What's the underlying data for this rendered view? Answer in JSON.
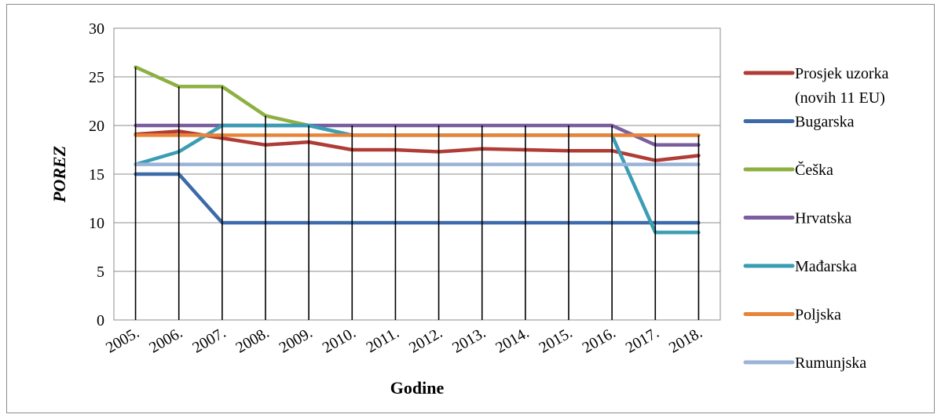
{
  "chart_data": {
    "type": "line",
    "title": "",
    "xlabel": "Godine",
    "ylabel": "POREZ",
    "ylim": [
      0,
      30
    ],
    "yticks": [
      0,
      5,
      10,
      15,
      20,
      25,
      30
    ],
    "grid": true,
    "legend_position": "right",
    "categories": [
      "2005.",
      "2006.",
      "2007.",
      "2008.",
      "2009.",
      "2010.",
      "2011.",
      "2012.",
      "2013.",
      "2014.",
      "2015.",
      "2016.",
      "2017.",
      "2018."
    ],
    "series": [
      {
        "name": "Prosjek uzorka (novih 11 EU)",
        "label_lines": [
          "Prosjek uzorka",
          "(novih 11 EU)"
        ],
        "color": "#b03c36",
        "values": [
          19.1,
          19.4,
          18.7,
          18.0,
          18.3,
          17.5,
          17.5,
          17.3,
          17.6,
          17.5,
          17.4,
          17.4,
          16.4,
          16.9
        ]
      },
      {
        "name": "Bugarska",
        "label_lines": [
          "Bugarska"
        ],
        "color": "#3d6aa8",
        "values": [
          15,
          15,
          10,
          10,
          10,
          10,
          10,
          10,
          10,
          10,
          10,
          10,
          10,
          10
        ]
      },
      {
        "name": "Češka",
        "label_lines": [
          "Češka"
        ],
        "color": "#8db041",
        "values": [
          26,
          24,
          24,
          21,
          20,
          19,
          19,
          19,
          19,
          19,
          19,
          19,
          19,
          19
        ]
      },
      {
        "name": "Hrvatska",
        "label_lines": [
          "Hrvatska"
        ],
        "color": "#7b5da0",
        "values": [
          20,
          20,
          20,
          20,
          20,
          20,
          20,
          20,
          20,
          20,
          20,
          20,
          18,
          18
        ]
      },
      {
        "name": "Mađarska",
        "label_lines": [
          "Mađarska"
        ],
        "color": "#3a9db4",
        "values": [
          16,
          17.3,
          20,
          20,
          20,
          19,
          19,
          19,
          19,
          19,
          19,
          19,
          9,
          9
        ]
      },
      {
        "name": "Poljska",
        "label_lines": [
          "Poljska"
        ],
        "color": "#e8843a",
        "values": [
          19,
          19,
          19,
          19,
          19,
          19,
          19,
          19,
          19,
          19,
          19,
          19,
          19,
          19
        ]
      },
      {
        "name": "Rumunjska",
        "label_lines": [
          "Rumunjska"
        ],
        "color": "#9bb3d6",
        "values": [
          16,
          16,
          16,
          16,
          16,
          16,
          16,
          16,
          16,
          16,
          16,
          16,
          16,
          16
        ]
      }
    ]
  }
}
